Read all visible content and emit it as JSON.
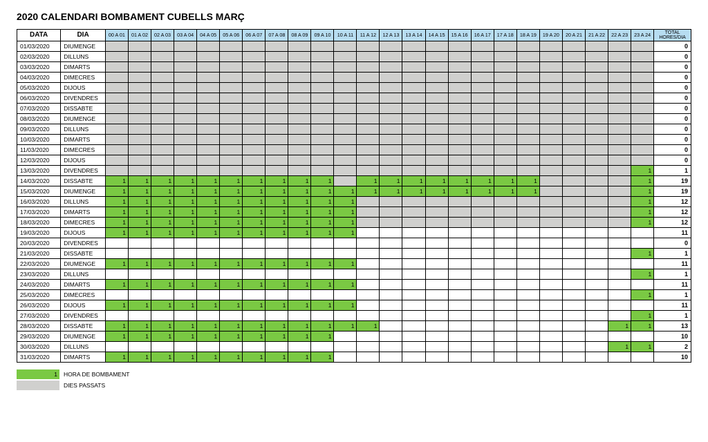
{
  "title": "2020 CALENDARI BOMBAMENT CUBELLS MARÇ",
  "headers": {
    "data": "DATA",
    "dia": "DIA",
    "total_top": "TOTAL",
    "total_bottom": "HORES/DIA"
  },
  "hour_labels": [
    "00 A 01",
    "01 A 02",
    "02 A 03",
    "03 A 04",
    "04 A 05",
    "05 A 06",
    "06 A 07",
    "07 A 08",
    "08 A 09",
    "09 A 10",
    "10 A 11",
    "11 A 12",
    "12 A 13",
    "13 A 14",
    "14 A 15",
    "15 A 16",
    "16 A 17",
    "17 A 18",
    "18 A 19",
    "19 A 20",
    "20 A 21",
    "21 A 22",
    "22 A 23",
    "23 A 24"
  ],
  "colors": {
    "grey": "#d0d0ce",
    "green": "#7ac943",
    "header_blue": "#b7ddf1",
    "border": "#000000",
    "white": "#ffffff"
  },
  "legend": {
    "pumping_value": "1",
    "pumping": "HORA DE BOMBAMENT",
    "past": "DIES PASSATS"
  },
  "rows": [
    {
      "date": "01/03/2020",
      "day": "DIUMENGE",
      "hours": [
        "g",
        "g",
        "g",
        "g",
        "g",
        "g",
        "g",
        "g",
        "g",
        "g",
        "g",
        "g",
        "g",
        "g",
        "g",
        "g",
        "g",
        "g",
        "g",
        "g",
        "g",
        "g",
        "g",
        "g"
      ],
      "total": 0
    },
    {
      "date": "02/03/2020",
      "day": "DILLUNS",
      "hours": [
        "g",
        "g",
        "g",
        "g",
        "g",
        "g",
        "g",
        "g",
        "g",
        "g",
        "g",
        "g",
        "g",
        "g",
        "g",
        "g",
        "g",
        "g",
        "g",
        "g",
        "g",
        "g",
        "g",
        "g"
      ],
      "total": 0
    },
    {
      "date": "03/03/2020",
      "day": "DIMARTS",
      "hours": [
        "g",
        "g",
        "g",
        "g",
        "g",
        "g",
        "g",
        "g",
        "g",
        "g",
        "g",
        "g",
        "g",
        "g",
        "g",
        "g",
        "g",
        "g",
        "g",
        "g",
        "g",
        "g",
        "g",
        "g"
      ],
      "total": 0
    },
    {
      "date": "04/03/2020",
      "day": "DIMECRES",
      "hours": [
        "g",
        "g",
        "g",
        "g",
        "g",
        "g",
        "g",
        "g",
        "g",
        "g",
        "g",
        "g",
        "g",
        "g",
        "g",
        "g",
        "g",
        "g",
        "g",
        "g",
        "g",
        "g",
        "g",
        "g"
      ],
      "total": 0
    },
    {
      "date": "05/03/2020",
      "day": "DIJOUS",
      "hours": [
        "g",
        "g",
        "g",
        "g",
        "g",
        "g",
        "g",
        "g",
        "g",
        "g",
        "g",
        "g",
        "g",
        "g",
        "g",
        "g",
        "g",
        "g",
        "g",
        "g",
        "g",
        "g",
        "g",
        "g"
      ],
      "total": 0
    },
    {
      "date": "06/03/2020",
      "day": "DIVENDRES",
      "hours": [
        "g",
        "g",
        "g",
        "g",
        "g",
        "g",
        "g",
        "g",
        "g",
        "g",
        "g",
        "g",
        "g",
        "g",
        "g",
        "g",
        "g",
        "g",
        "g",
        "g",
        "g",
        "g",
        "g",
        "g"
      ],
      "total": 0
    },
    {
      "date": "07/03/2020",
      "day": "DISSABTE",
      "hours": [
        "g",
        "g",
        "g",
        "g",
        "g",
        "g",
        "g",
        "g",
        "g",
        "g",
        "g",
        "g",
        "g",
        "g",
        "g",
        "g",
        "g",
        "g",
        "g",
        "g",
        "g",
        "g",
        "g",
        "g"
      ],
      "total": 0
    },
    {
      "date": "08/03/2020",
      "day": "DIUMENGE",
      "hours": [
        "g",
        "g",
        "g",
        "g",
        "g",
        "g",
        "g",
        "g",
        "g",
        "g",
        "g",
        "g",
        "g",
        "g",
        "g",
        "g",
        "g",
        "g",
        "g",
        "g",
        "g",
        "g",
        "g",
        "g"
      ],
      "total": 0
    },
    {
      "date": "09/03/2020",
      "day": "DILLUNS",
      "hours": [
        "g",
        "g",
        "g",
        "g",
        "g",
        "g",
        "g",
        "g",
        "g",
        "g",
        "g",
        "g",
        "g",
        "g",
        "g",
        "g",
        "g",
        "g",
        "g",
        "g",
        "g",
        "g",
        "g",
        "g"
      ],
      "total": 0
    },
    {
      "date": "10/03/2020",
      "day": "DIMARTS",
      "hours": [
        "g",
        "g",
        "g",
        "g",
        "g",
        "g",
        "g",
        "g",
        "g",
        "g",
        "g",
        "g",
        "g",
        "g",
        "g",
        "g",
        "g",
        "g",
        "g",
        "g",
        "g",
        "g",
        "g",
        "g"
      ],
      "total": 0
    },
    {
      "date": "11/03/2020",
      "day": "DIMECRES",
      "hours": [
        "g",
        "g",
        "g",
        "g",
        "g",
        "g",
        "g",
        "g",
        "g",
        "g",
        "g",
        "g",
        "g",
        "g",
        "g",
        "g",
        "g",
        "g",
        "g",
        "g",
        "g",
        "g",
        "g",
        "g"
      ],
      "total": 0
    },
    {
      "date": "12/03/2020",
      "day": "DIJOUS",
      "hours": [
        "g",
        "g",
        "g",
        "g",
        "g",
        "g",
        "g",
        "g",
        "g",
        "g",
        "g",
        "g",
        "g",
        "g",
        "g",
        "g",
        "g",
        "g",
        "g",
        "g",
        "g",
        "g",
        "g",
        "g"
      ],
      "total": 0
    },
    {
      "date": "13/03/2020",
      "day": "DIVENDRES",
      "hours": [
        "g",
        "g",
        "g",
        "g",
        "g",
        "g",
        "g",
        "g",
        "g",
        "g",
        "g",
        "g",
        "g",
        "g",
        "g",
        "g",
        "g",
        "g",
        "g",
        "g",
        "g",
        "g",
        "g",
        "1"
      ],
      "total": 1
    },
    {
      "date": "14/03/2020",
      "day": "DISSABTE",
      "hours": [
        "1",
        "1",
        "1",
        "1",
        "1",
        "1",
        "1",
        "1",
        "1",
        "1",
        "g",
        "1",
        "1",
        "1",
        "1",
        "1",
        "1",
        "1",
        "1",
        "g",
        "g",
        "g",
        "g",
        "1"
      ],
      "total": 19
    },
    {
      "date": "15/03/2020",
      "day": "DIUMENGE",
      "hours": [
        "1",
        "1",
        "1",
        "1",
        "1",
        "1",
        "1",
        "1",
        "1",
        "1",
        "1",
        "1",
        "1",
        "1",
        "1",
        "1",
        "1",
        "1",
        "1g",
        "g",
        "g",
        "g",
        "g",
        "1"
      ],
      "total": 19
    },
    {
      "date": "16/03/2020",
      "day": "DILLUNS",
      "hours": [
        "1",
        "1",
        "1",
        "1",
        "1",
        "1",
        "1",
        "1",
        "1",
        "1",
        "1",
        "g",
        "g",
        "g",
        "g",
        "g",
        "g",
        "g",
        "g",
        "g",
        "g",
        "g",
        "g",
        "1"
      ],
      "total": 12
    },
    {
      "date": "17/03/2020",
      "day": "DIMARTS",
      "hours": [
        "1",
        "1",
        "1",
        "1",
        "1",
        "1",
        "1",
        "1",
        "1",
        "1",
        "1",
        "g",
        "g",
        "g",
        "g",
        "g",
        "g",
        "g",
        "g",
        "g",
        "g",
        "g",
        "g",
        "1"
      ],
      "total": 12
    },
    {
      "date": "18/03/2020",
      "day": "DIMECRES",
      "hours": [
        "1",
        "1",
        "1",
        "1",
        "1",
        "1",
        "1",
        "1",
        "1",
        "1",
        "1",
        "g",
        "g",
        "g",
        "g",
        "g",
        "g",
        "g",
        "g",
        "g",
        "g",
        "g",
        "g",
        "1"
      ],
      "total": 12
    },
    {
      "date": "19/03/2020",
      "day": "DIJOUS",
      "hours": [
        "1",
        "1",
        "1",
        "1",
        "1",
        "1",
        "1",
        "1",
        "1",
        "1",
        "1",
        "w",
        "w",
        "w",
        "w",
        "w",
        "w",
        "w",
        "w",
        "w",
        "w",
        "w",
        "w",
        "w"
      ],
      "total": 11
    },
    {
      "date": "20/03/2020",
      "day": "DIVENDRES",
      "hours": [
        "w",
        "w",
        "w",
        "w",
        "w",
        "w",
        "w",
        "w",
        "w",
        "w",
        "w",
        "w",
        "w",
        "w",
        "w",
        "w",
        "w",
        "w",
        "w",
        "w",
        "w",
        "w",
        "w",
        "w"
      ],
      "total": 0
    },
    {
      "date": "21/03/2020",
      "day": "DISSABTE",
      "hours": [
        "w",
        "w",
        "w",
        "w",
        "w",
        "w",
        "w",
        "w",
        "w",
        "w",
        "w",
        "w",
        "w",
        "w",
        "w",
        "w",
        "w",
        "w",
        "w",
        "w",
        "w",
        "w",
        "w",
        "1"
      ],
      "total": 1
    },
    {
      "date": "22/03/2020",
      "day": "DIUMENGE",
      "hours": [
        "1",
        "1",
        "1",
        "1",
        "1",
        "1",
        "1",
        "1",
        "1",
        "1",
        "1w",
        "w",
        "w",
        "w",
        "w",
        "w",
        "w",
        "w",
        "w",
        "w",
        "w",
        "w",
        "w",
        "w"
      ],
      "total": 11
    },
    {
      "date": "23/03/2020",
      "day": "DILLUNS",
      "hours": [
        "w",
        "w",
        "w",
        "w",
        "w",
        "w",
        "w",
        "w",
        "w",
        "w",
        "w",
        "w",
        "w",
        "w",
        "w",
        "w",
        "w",
        "w",
        "w",
        "w",
        "w",
        "w",
        "w",
        "1"
      ],
      "total": 1
    },
    {
      "date": "24/03/2020",
      "day": "DIMARTS",
      "hours": [
        "1",
        "1",
        "1",
        "1",
        "1",
        "1",
        "1",
        "1",
        "1",
        "1",
        "1",
        "w",
        "w",
        "w",
        "w",
        "w",
        "w",
        "w",
        "w",
        "w",
        "w",
        "w",
        "w",
        "w"
      ],
      "total": 11
    },
    {
      "date": "25/03/2020",
      "day": "DIMECRES",
      "hours": [
        "w",
        "w",
        "w",
        "w",
        "w",
        "w",
        "w",
        "w",
        "w",
        "w",
        "w",
        "w",
        "w",
        "w",
        "w",
        "w",
        "w",
        "w",
        "w",
        "w",
        "w",
        "w",
        "w",
        "1"
      ],
      "total": 1
    },
    {
      "date": "26/03/2020",
      "day": "DIJOUS",
      "hours": [
        "1",
        "1",
        "1",
        "1",
        "1",
        "1",
        "1",
        "1",
        "1",
        "1",
        "1",
        "w",
        "w",
        "w",
        "w",
        "w",
        "w",
        "w",
        "w",
        "w",
        "w",
        "w",
        "w",
        "w"
      ],
      "total": 11
    },
    {
      "date": "27/03/2020",
      "day": "DIVENDRES",
      "hours": [
        "w",
        "w",
        "w",
        "w",
        "w",
        "w",
        "w",
        "w",
        "w",
        "w",
        "w",
        "w",
        "w",
        "w",
        "w",
        "w",
        "w",
        "w",
        "w",
        "w",
        "w",
        "w",
        "w",
        "1"
      ],
      "total": 1
    },
    {
      "date": "28/03/2020",
      "day": "DISSABTE",
      "hours": [
        "1",
        "1",
        "1",
        "1",
        "1",
        "1",
        "1",
        "1",
        "1",
        "1",
        "1",
        "1w",
        "w",
        "w",
        "w",
        "w",
        "w",
        "w",
        "w",
        "w",
        "w",
        "w",
        "1",
        "1"
      ],
      "total": 13
    },
    {
      "date": "29/03/2020",
      "day": "DIUMENGE",
      "hours": [
        "1",
        "1",
        "1",
        "1",
        "1",
        "1",
        "1",
        "1",
        "1",
        "1",
        "w",
        "w",
        "w",
        "w",
        "w",
        "w",
        "w",
        "w",
        "w",
        "w",
        "w",
        "w",
        "w",
        "w"
      ],
      "total": 10
    },
    {
      "date": "30/03/2020",
      "day": "DILLUNS",
      "hours": [
        "w",
        "w",
        "w",
        "w",
        "w",
        "w",
        "w",
        "w",
        "w",
        "w",
        "w",
        "w",
        "w",
        "w",
        "w",
        "w",
        "w",
        "w",
        "w",
        "w",
        "w",
        "w",
        "1",
        "1"
      ],
      "total": 2
    },
    {
      "date": "31/03/2020",
      "day": "DIMARTS",
      "hours": [
        "1",
        "1",
        "1",
        "1",
        "1",
        "1",
        "1",
        "1",
        "1",
        "1",
        "w",
        "w",
        "w",
        "w",
        "w",
        "w",
        "w",
        "w",
        "w",
        "w",
        "w",
        "w",
        "w",
        "w"
      ],
      "total": 10
    }
  ]
}
